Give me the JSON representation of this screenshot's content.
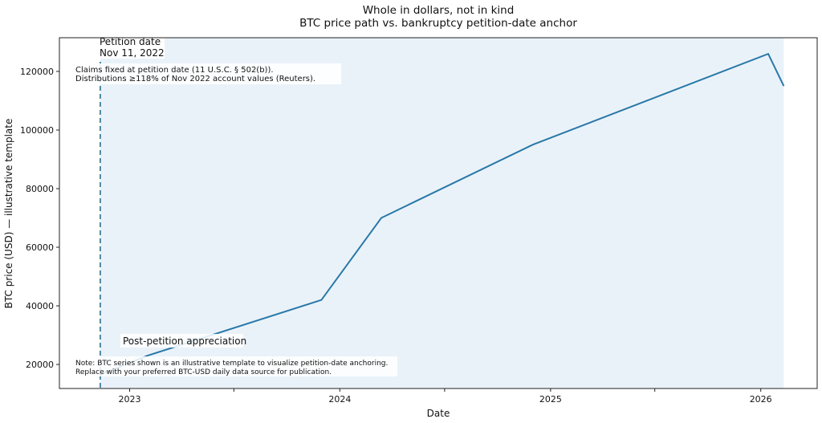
{
  "chart_data": {
    "type": "line",
    "title": "Whole in dollars, not in kind",
    "subtitle": "BTC price path vs. bankruptcy petition-date anchor",
    "xlabel": "Date",
    "ylabel": "BTC price (USD) — illustrative template",
    "xlim": [
      "2022-09-01",
      "2026-04-09"
    ],
    "ylim": [
      11800,
      131500
    ],
    "xticks": [
      {
        "date": "2023-01-01",
        "label": "2023"
      },
      {
        "date": "2023-07-01",
        "label": ""
      },
      {
        "date": "2024-01-01",
        "label": "2024"
      },
      {
        "date": "2024-07-01",
        "label": ""
      },
      {
        "date": "2025-01-01",
        "label": "2025"
      },
      {
        "date": "2025-07-01",
        "label": ""
      },
      {
        "date": "2026-01-01",
        "label": "2026"
      }
    ],
    "yticks": [
      20000,
      40000,
      60000,
      80000,
      100000,
      120000
    ],
    "grid": false,
    "series": [
      {
        "color": "#2878a8",
        "points": [
          {
            "x": "2022-11-11",
            "y": 16500
          },
          {
            "x": "2023-02-01",
            "y": 23000
          },
          {
            "x": "2023-11-30",
            "y": 42000
          },
          {
            "x": "2024-03-13",
            "y": 70000
          },
          {
            "x": "2024-12-01",
            "y": 95000
          },
          {
            "x": "2026-01-14",
            "y": 126000
          },
          {
            "x": "2026-02-10",
            "y": 115000
          }
        ]
      }
    ],
    "shaded_region": {
      "from": "2022-11-11",
      "to": "2026-02-10",
      "color": "#eaf2f9"
    },
    "vline": {
      "x": "2022-11-11",
      "color": "#2a6f8f",
      "label_line1": "Petition date",
      "label_line2": "Nov 11, 2022"
    },
    "annotations": {
      "claims_line1": "Claims fixed at petition date (11 U.S.C. § 502(b)).",
      "claims_line2": "Distributions ≥118% of Nov 2022 account values (Reuters).",
      "appreciation": "Post-petition appreciation",
      "note_line1": "Note: BTC series shown is an illustrative template to visualize petition-date anchoring.",
      "note_line2": "Replace with your preferred BTC-USD daily data source for publication."
    }
  }
}
